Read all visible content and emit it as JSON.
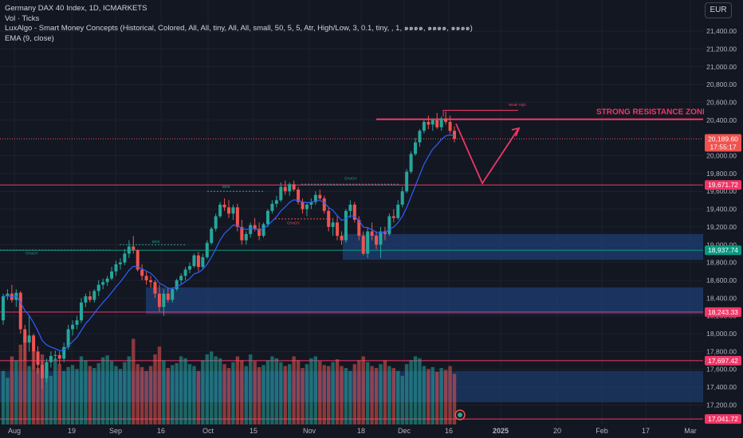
{
  "legend": {
    "line1": "Germany DAX 40 Index, 1D, ICMARKETS",
    "line2": "Vol · Ticks",
    "line3": "LuxAlgo - Smart Money Concepts (Historical, Colored, All, All, tiny, All, All, small, 50, 5, 5, Atr, High/Low, 3, 0.1, tiny, , 1, ๑๑๑๑, ๑๑๑๑, ๑๑๑๑)",
    "line4": "EMA (9, close)"
  },
  "currency": "EUR",
  "annotations": {
    "resistance": "STRONG RESISTANCE ZONE",
    "weak_high": "Weak High",
    "bos1": "BOS",
    "bos2": "BOS",
    "choch1": "CHoCH",
    "choch2": "CHoCH",
    "choch3": "CHoCH"
  },
  "price_tags": {
    "current": "20,189.60",
    "countdown": "17:55:17",
    "level1": "19,671.72",
    "level2": "18,937.74",
    "level3": "18,243.33",
    "level4": "17,697.42",
    "level5": "17,041.72"
  },
  "colors": {
    "background": "#131722",
    "up": "#26a69a",
    "down": "#ef5350",
    "ema": "#2962ff",
    "resistance": "#f23667",
    "zone": "#1e3f74",
    "level_line": "#f23667",
    "level_green": "#089981"
  },
  "chart_data": {
    "type": "candlestick",
    "y_ticks": [
      "21,400.00",
      "21,200.00",
      "21,000.00",
      "20,800.00",
      "20,600.00",
      "20,400.00",
      "20,000.00",
      "19,800.00",
      "19,600.00",
      "19,400.00",
      "19,200.00",
      "19,000.00",
      "18,800.00",
      "18,600.00",
      "18,400.00",
      "18,200.00",
      "18,000.00",
      "17,800.00",
      "17,600.00",
      "17,400.00",
      "17,200.00"
    ],
    "y_tick_values": [
      21400,
      21200,
      21000,
      20800,
      20600,
      20400,
      20000,
      19800,
      19600,
      19400,
      19200,
      19000,
      18800,
      18600,
      18400,
      18200,
      18000,
      17800,
      17600,
      17400,
      17200
    ],
    "ylim": [
      16980,
      21750
    ],
    "x_ticks": [
      "Aug",
      "19",
      "Sep",
      "16",
      "Oct",
      "15",
      "Nov",
      "18",
      "Dec",
      "16",
      "2025",
      "20",
      "Feb",
      "17",
      "Mar"
    ],
    "horizontal_levels": [
      19671.72,
      18937.74,
      18243.33,
      17697.42,
      17041.72
    ],
    "resistance_level": 20410,
    "current_price": 20189.6,
    "demand_zones": [
      [
        18830,
        19120
      ],
      [
        18220,
        18520
      ]
    ],
    "volume_zone": [
      17230,
      17580
    ],
    "projection": [
      [
        20360,
        19690
      ],
      [
        19690,
        20300
      ]
    ],
    "candles": [
      [
        18150,
        18450,
        18100,
        18420
      ],
      [
        18420,
        18500,
        18380,
        18450
      ],
      [
        18450,
        18550,
        18350,
        18380
      ],
      [
        18380,
        18500,
        18300,
        18460
      ],
      [
        18460,
        18480,
        18000,
        18050
      ],
      [
        18050,
        18100,
        17700,
        17900
      ],
      [
        17900,
        18200,
        17800,
        17980
      ],
      [
        17980,
        18000,
        17600,
        17800
      ],
      [
        17800,
        17860,
        17550,
        17650
      ],
      [
        17650,
        17700,
        17380,
        17500
      ],
      [
        17500,
        17720,
        17450,
        17680
      ],
      [
        17680,
        17800,
        17620,
        17750
      ],
      [
        17750,
        17810,
        17700,
        17760
      ],
      [
        17760,
        17800,
        17650,
        17720
      ],
      [
        17720,
        17900,
        17680,
        17850
      ],
      [
        17850,
        18100,
        17820,
        18050
      ],
      [
        18050,
        18150,
        17980,
        18100
      ],
      [
        18100,
        18200,
        18050,
        18150
      ],
      [
        18150,
        18400,
        18120,
        18350
      ],
      [
        18350,
        18450,
        18300,
        18420
      ],
      [
        18420,
        18480,
        18350,
        18380
      ],
      [
        18380,
        18500,
        18350,
        18480
      ],
      [
        18480,
        18600,
        18420,
        18550
      ],
      [
        18550,
        18620,
        18500,
        18580
      ],
      [
        18580,
        18650,
        18540,
        18620
      ],
      [
        18620,
        18750,
        18600,
        18700
      ],
      [
        18700,
        18820,
        18650,
        18780
      ],
      [
        18780,
        18850,
        18720,
        18800
      ],
      [
        18800,
        18950,
        18770,
        18900
      ],
      [
        18900,
        19050,
        18850,
        18980
      ],
      [
        18980,
        19100,
        18900,
        18940
      ],
      [
        18940,
        18950,
        18700,
        18720
      ],
      [
        18720,
        18780,
        18600,
        18650
      ],
      [
        18650,
        18700,
        18550,
        18600
      ],
      [
        18600,
        18650,
        18520,
        18580
      ],
      [
        18580,
        18600,
        18400,
        18450
      ],
      [
        18450,
        18550,
        18250,
        18300
      ],
      [
        18300,
        18500,
        18200,
        18450
      ],
      [
        18450,
        18520,
        18350,
        18380
      ],
      [
        18380,
        18520,
        18350,
        18500
      ],
      [
        18500,
        18620,
        18480,
        18600
      ],
      [
        18600,
        18680,
        18550,
        18650
      ],
      [
        18650,
        18750,
        18600,
        18720
      ],
      [
        18720,
        18800,
        18680,
        18760
      ],
      [
        18760,
        18900,
        18740,
        18880
      ],
      [
        18880,
        18920,
        18700,
        18750
      ],
      [
        18750,
        18900,
        18720,
        18860
      ],
      [
        18860,
        19050,
        18840,
        19020
      ],
      [
        19020,
        19200,
        19000,
        19180
      ],
      [
        19180,
        19350,
        19150,
        19320
      ],
      [
        19320,
        19480,
        19300,
        19450
      ],
      [
        19450,
        19520,
        19380,
        19420
      ],
      [
        19420,
        19500,
        19300,
        19350
      ],
      [
        19350,
        19450,
        19280,
        19420
      ],
      [
        19420,
        19460,
        19150,
        19200
      ],
      [
        19200,
        19280,
        19000,
        19050
      ],
      [
        19050,
        19150,
        19000,
        19120
      ],
      [
        19120,
        19250,
        19080,
        19220
      ],
      [
        19220,
        19300,
        19150,
        19180
      ],
      [
        19180,
        19250,
        19050,
        19100
      ],
      [
        19100,
        19250,
        19080,
        19230
      ],
      [
        19230,
        19400,
        19200,
        19380
      ],
      [
        19380,
        19500,
        19350,
        19460
      ],
      [
        19460,
        19550,
        19420,
        19500
      ],
      [
        19500,
        19700,
        19480,
        19650
      ],
      [
        19650,
        19720,
        19560,
        19600
      ],
      [
        19600,
        19700,
        19550,
        19680
      ],
      [
        19680,
        19720,
        19600,
        19620
      ],
      [
        19620,
        19650,
        19450,
        19480
      ],
      [
        19480,
        19520,
        19350,
        19400
      ],
      [
        19400,
        19480,
        19320,
        19450
      ],
      [
        19450,
        19520,
        19400,
        19480
      ],
      [
        19480,
        19600,
        19450,
        19560
      ],
      [
        19560,
        19620,
        19500,
        19520
      ],
      [
        19520,
        19550,
        19350,
        19380
      ],
      [
        19380,
        19420,
        19150,
        19200
      ],
      [
        19200,
        19300,
        19100,
        19250
      ],
      [
        19250,
        19320,
        19050,
        19100
      ],
      [
        19100,
        19150,
        19000,
        19050
      ],
      [
        19050,
        19400,
        19020,
        19380
      ],
      [
        19380,
        19500,
        19300,
        19450
      ],
      [
        19450,
        19480,
        19250,
        19280
      ],
      [
        19280,
        19320,
        19050,
        19100
      ],
      [
        19100,
        19150,
        18880,
        18900
      ],
      [
        18900,
        19200,
        18850,
        19150
      ],
      [
        19150,
        19250,
        19050,
        19100
      ],
      [
        19100,
        19150,
        18950,
        19000
      ],
      [
        19000,
        19200,
        18850,
        19150
      ],
      [
        19150,
        19200,
        19050,
        19120
      ],
      [
        19120,
        19350,
        19100,
        19320
      ],
      [
        19320,
        19400,
        19250,
        19300
      ],
      [
        19300,
        19500,
        19280,
        19450
      ],
      [
        19450,
        19650,
        19420,
        19600
      ],
      [
        19600,
        19850,
        19580,
        19820
      ],
      [
        19820,
        20050,
        19800,
        20020
      ],
      [
        20020,
        20200,
        20000,
        20150
      ],
      [
        20150,
        20300,
        20100,
        20280
      ],
      [
        20280,
        20400,
        20250,
        20380
      ],
      [
        20380,
        20450,
        20300,
        20350
      ],
      [
        20350,
        20420,
        20280,
        20400
      ],
      [
        20400,
        20480,
        20300,
        20320
      ],
      [
        20320,
        20440,
        20280,
        20420
      ],
      [
        20420,
        20500,
        20350,
        20380
      ],
      [
        20380,
        20450,
        20250,
        20280
      ],
      [
        20280,
        20330,
        20150,
        20190
      ]
    ],
    "volumes": [
      55,
      48,
      70,
      66,
      82,
      90,
      60,
      75,
      58,
      72,
      64,
      50,
      68,
      62,
      55,
      59,
      61,
      57,
      70,
      66,
      60,
      58,
      63,
      69,
      71,
      65,
      60,
      57,
      64,
      70,
      88,
      62,
      59,
      55,
      60,
      72,
      80,
      66,
      58,
      61,
      63,
      70,
      68,
      62,
      60,
      55,
      66,
      72,
      75,
      70,
      68,
      62,
      58,
      64,
      70,
      66,
      60,
      72,
      65,
      59,
      61,
      66,
      70,
      68,
      64,
      60,
      62,
      70,
      66,
      58,
      62,
      68,
      70,
      65,
      61,
      60,
      64,
      67,
      60,
      58,
      55,
      62,
      66,
      70,
      64,
      60,
      58,
      62,
      66,
      60,
      58,
      55,
      50,
      62,
      66,
      70,
      68,
      60,
      57,
      59,
      54,
      58,
      56,
      60,
      52
    ]
  }
}
